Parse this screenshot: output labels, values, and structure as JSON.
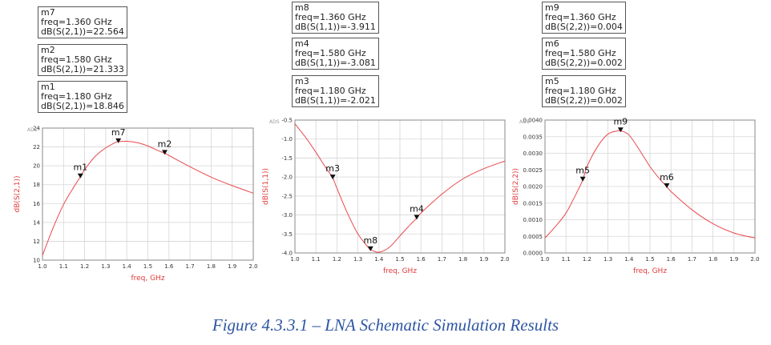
{
  "caption": "Figure 4.3.3.1 – LNA Schematic Simulation Results",
  "colors": {
    "trace": "#e8484d",
    "grid": "#d6d6d6",
    "caption": "#2e55a3"
  },
  "chart_data": [
    {
      "type": "line",
      "watermark": "ADS",
      "xlabel": "freq, GHz",
      "ylabel": "dB(S(2,1))",
      "xlim": [
        1.0,
        2.0
      ],
      "ylim": [
        10,
        24
      ],
      "xticks": [
        "1.0",
        "1.1",
        "1.2",
        "1.3",
        "1.4",
        "1.5",
        "1.6",
        "1.7",
        "1.8",
        "1.9",
        "2.0"
      ],
      "yticks": [
        "10",
        "12",
        "14",
        "16",
        "18",
        "20",
        "22",
        "24"
      ],
      "grid": true,
      "series": [
        {
          "x": [
            1.0,
            1.05,
            1.1,
            1.15,
            1.18,
            1.2,
            1.25,
            1.3,
            1.35,
            1.36,
            1.4,
            1.45,
            1.5,
            1.55,
            1.58,
            1.6,
            1.7,
            1.8,
            1.9,
            2.0
          ],
          "y": [
            10.5,
            13.4,
            15.9,
            17.8,
            18.846,
            19.6,
            21.0,
            21.9,
            22.52,
            22.564,
            22.6,
            22.45,
            22.1,
            21.6,
            21.333,
            21.1,
            19.9,
            18.8,
            17.9,
            17.1
          ]
        }
      ],
      "markers": [
        {
          "label": "m7",
          "freq_text": "freq=1.360 GHz",
          "value_text": "dB(S(2,1))=22.564",
          "x": 1.36,
          "y": 22.564
        },
        {
          "label": "m2",
          "freq_text": "freq=1.580 GHz",
          "value_text": "dB(S(2,1))=21.333",
          "x": 1.58,
          "y": 21.333
        },
        {
          "label": "m1",
          "freq_text": "freq=1.180 GHz",
          "value_text": "dB(S(2,1))=18.846",
          "x": 1.18,
          "y": 18.846
        }
      ]
    },
    {
      "type": "line",
      "watermark": "ADS",
      "xlabel": "freq, GHz",
      "ylabel": "dB(S(1,1))",
      "xlim": [
        1.0,
        2.0
      ],
      "ylim": [
        -4.0,
        -0.5
      ],
      "xticks": [
        "1.0",
        "1.1",
        "1.2",
        "1.3",
        "1.4",
        "1.5",
        "1.6",
        "1.7",
        "1.8",
        "1.9",
        "2.0"
      ],
      "yticks": [
        "-4.0",
        "-3.5",
        "-3.0",
        "-2.5",
        "-2.0",
        "-1.5",
        "-1.0",
        "-0.5"
      ],
      "grid": true,
      "series": [
        {
          "x": [
            1.0,
            1.05,
            1.1,
            1.15,
            1.18,
            1.2,
            1.25,
            1.3,
            1.35,
            1.36,
            1.4,
            1.45,
            1.5,
            1.55,
            1.58,
            1.6,
            1.7,
            1.8,
            1.9,
            2.0
          ],
          "y": [
            -0.6,
            -0.95,
            -1.35,
            -1.78,
            -2.021,
            -2.3,
            -2.95,
            -3.5,
            -3.86,
            -3.911,
            -3.98,
            -3.85,
            -3.55,
            -3.25,
            -3.081,
            -2.95,
            -2.45,
            -2.05,
            -1.78,
            -1.58
          ]
        }
      ],
      "markers": [
        {
          "label": "m8",
          "freq_text": "freq=1.360 GHz",
          "value_text": "dB(S(1,1))=-3.911",
          "x": 1.36,
          "y": -3.911
        },
        {
          "label": "m4",
          "freq_text": "freq=1.580 GHz",
          "value_text": "dB(S(1,1))=-3.081",
          "x": 1.58,
          "y": -3.081
        },
        {
          "label": "m3",
          "freq_text": "freq=1.180 GHz",
          "value_text": "dB(S(1,1))=-2.021",
          "x": 1.18,
          "y": -2.021
        }
      ]
    },
    {
      "type": "line",
      "watermark": "ADS",
      "xlabel": "freq, GHz",
      "ylabel": "dB(S(2,2))",
      "xlim": [
        1.0,
        2.0
      ],
      "ylim": [
        0.0,
        0.004
      ],
      "xticks": [
        "1.0",
        "1.1",
        "1.2",
        "1.3",
        "1.4",
        "1.5",
        "1.6",
        "1.7",
        "1.8",
        "1.9",
        "2.0"
      ],
      "yticks": [
        "0.0000",
        "0.0005",
        "0.0010",
        "0.0015",
        "0.0020",
        "0.0025",
        "0.0030",
        "0.0035",
        "0.0040"
      ],
      "grid": true,
      "series": [
        {
          "x": [
            1.0,
            1.05,
            1.1,
            1.15,
            1.18,
            1.2,
            1.25,
            1.3,
            1.35,
            1.36,
            1.4,
            1.45,
            1.5,
            1.55,
            1.58,
            1.6,
            1.7,
            1.8,
            1.9,
            2.0
          ],
          "y": [
            0.00045,
            0.0008,
            0.0012,
            0.0018,
            0.0022,
            0.0026,
            0.0032,
            0.00358,
            0.00368,
            0.00368,
            0.00355,
            0.0031,
            0.0026,
            0.0022,
            0.002,
            0.00185,
            0.0013,
            0.00088,
            0.0006,
            0.00045
          ]
        }
      ],
      "markers": [
        {
          "label": "m9",
          "freq_text": "freq=1.360 GHz",
          "value_text": "dB(S(2,2))=0.004",
          "x": 1.36,
          "y": 0.00368
        },
        {
          "label": "m6",
          "freq_text": "freq=1.580 GHz",
          "value_text": "dB(S(2,2))=0.002",
          "x": 1.58,
          "y": 0.002
        },
        {
          "label": "m5",
          "freq_text": "freq=1.180 GHz",
          "value_text": "dB(S(2,2))=0.002",
          "x": 1.18,
          "y": 0.0022
        }
      ]
    }
  ]
}
